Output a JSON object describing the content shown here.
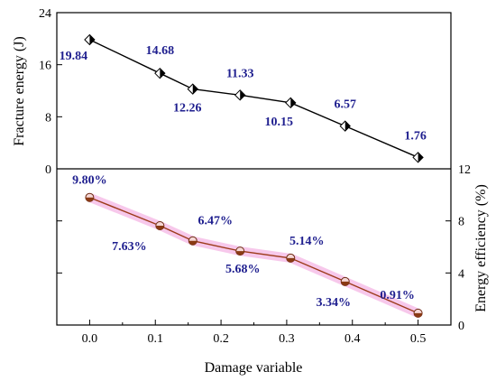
{
  "chart_data": [
    {
      "type": "line",
      "panel": "top",
      "x": [
        0.0,
        0.107,
        0.157,
        0.229,
        0.306,
        0.389,
        0.5
      ],
      "series": [
        {
          "values": [
            19.84,
            14.68,
            12.26,
            11.33,
            10.15,
            6.57,
            1.76
          ],
          "labels": [
            "19.84",
            "14.68",
            "12.26",
            "11.33",
            "10.15",
            "6.57",
            "1.76"
          ],
          "color": "#000000",
          "marker": "diamond-half"
        }
      ],
      "ylabel": "Fracture energy (J)",
      "ylim": [
        0,
        24
      ],
      "yticks": [
        "0",
        "8",
        "16",
        "24"
      ],
      "grid": false
    },
    {
      "type": "line",
      "panel": "bottom",
      "x": [
        0.0,
        0.107,
        0.157,
        0.229,
        0.306,
        0.389,
        0.5
      ],
      "series": [
        {
          "values": [
            9.8,
            7.63,
            6.47,
            5.68,
            5.14,
            3.34,
            0.91
          ],
          "labels": [
            "9.80%",
            "7.63%",
            "6.47%",
            "5.68%",
            "5.14%",
            "3.34%",
            "0.91%"
          ],
          "color": "#9c3a1a",
          "marker": "circle-half",
          "band_color": "#f4b6e4"
        }
      ],
      "xlabel": "Damage variable",
      "ylabel": "Energy efficiency (%)",
      "ylim": [
        0,
        12
      ],
      "yticks": [
        "0",
        "4",
        "8",
        "12"
      ],
      "xlim": [
        -0.05,
        0.55
      ],
      "xticks": [
        "0.0",
        "0.1",
        "0.2",
        "0.3",
        "0.4",
        "0.5"
      ],
      "grid": false
    }
  ]
}
